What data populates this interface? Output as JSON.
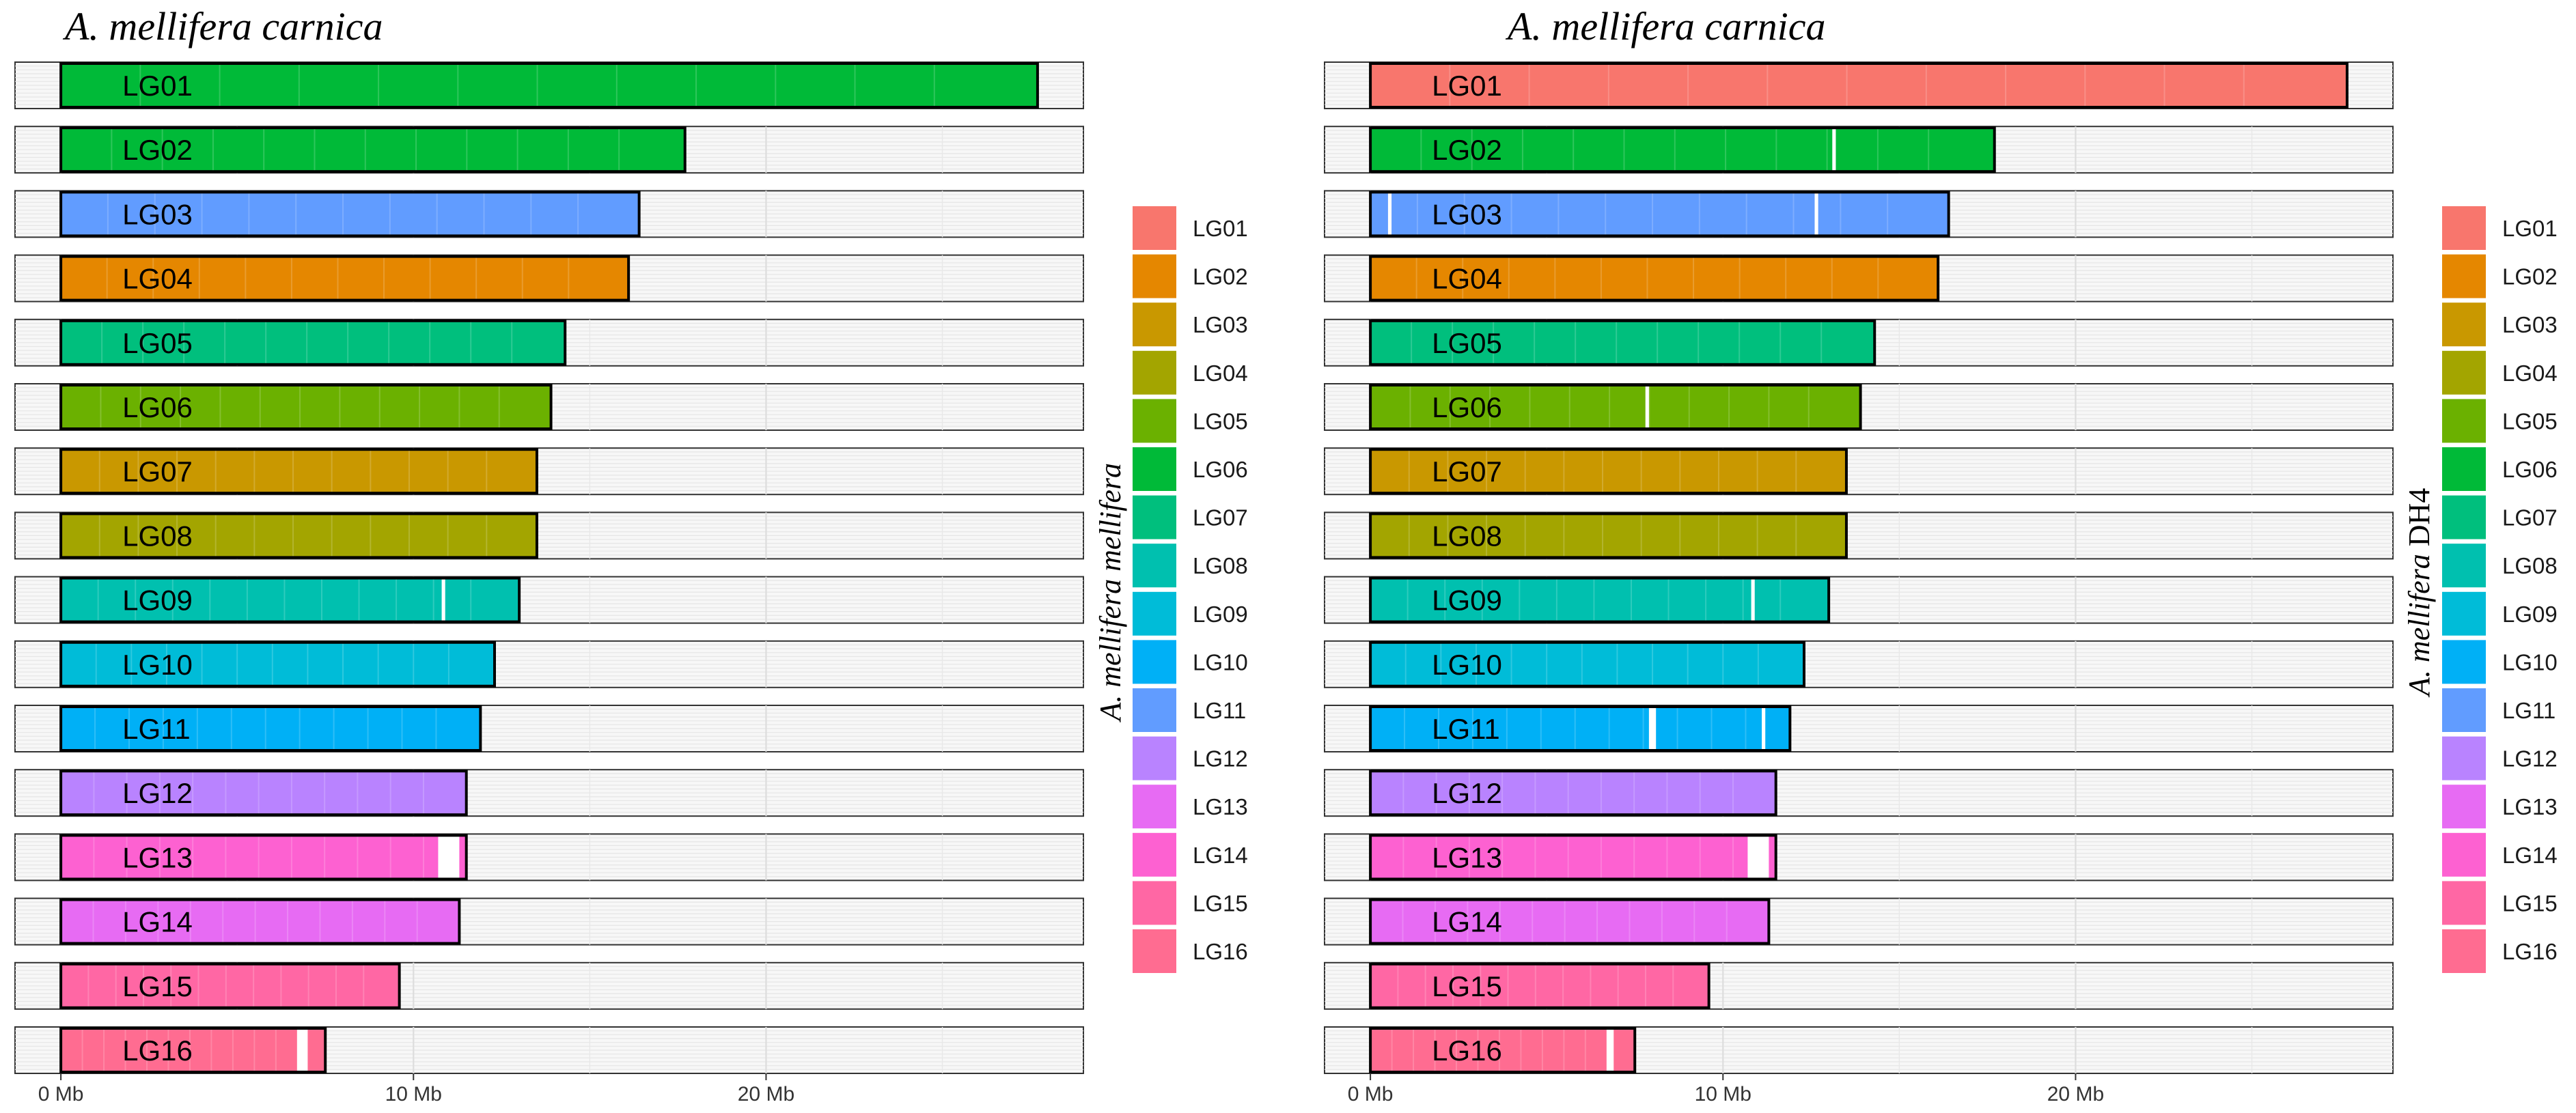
{
  "colors": {
    "LG01": "#F8766D",
    "LG02": "#E58700",
    "LG03": "#C99800",
    "LG04": "#A3A500",
    "LG05": "#6BB100",
    "LG06": "#00BA38",
    "LG07": "#00BF7D",
    "LG08": "#00C0AF",
    "LG09": "#00BCD8",
    "LG10": "#00B0F6",
    "LG11": "#619CFF",
    "LG12": "#B983FF",
    "LG13": "#E76BF3",
    "LG14": "#FD61D1",
    "LG15": "#FF67A4",
    "LG16": "#FF6C91"
  },
  "chart_data": [
    {
      "type": "bar",
      "title": "A. mellifera carnica",
      "xlabel": "",
      "ylabel_italic": "A. mellifera mellifera",
      "ylabel_plain": "",
      "xlim": [
        -1.3,
        29
      ],
      "xticks": [
        0,
        10,
        20
      ],
      "xtick_labels": [
        "0 Mb",
        "10 Mb",
        "20 Mb"
      ],
      "categories": [
        "LG01",
        "LG02",
        "LG03",
        "LG04",
        "LG05",
        "LG06",
        "LG07",
        "LG08",
        "LG09",
        "LG10",
        "LG11",
        "LG12",
        "LG13",
        "LG14",
        "LG15",
        "LG16"
      ],
      "values": [
        27.7,
        17.7,
        16.4,
        16.1,
        14.3,
        13.9,
        13.5,
        13.5,
        13.0,
        12.3,
        11.9,
        11.5,
        11.5,
        11.3,
        9.6,
        7.5
      ],
      "mapped_to": [
        "LG06",
        "LG06",
        "LG11",
        "LG02",
        "LG07",
        "LG05",
        "LG03",
        "LG04",
        "LG08",
        "LG09",
        "LG10",
        "LG12",
        "LG14",
        "LG13",
        "LG15",
        "LG16"
      ],
      "gaps": [
        [],
        [],
        [],
        [],
        [],
        [],
        [],
        [],
        [
          {
            "start": 10.8,
            "end": 10.9
          }
        ],
        [],
        [],
        [],
        [
          {
            "start": 10.7,
            "end": 11.3
          }
        ],
        [],
        [],
        [
          {
            "start": 6.7,
            "end": 7.0
          }
        ]
      ],
      "legend_title": "A. mellifera mellifera",
      "legend": [
        "LG01",
        "LG02",
        "LG03",
        "LG04",
        "LG05",
        "LG06",
        "LG07",
        "LG08",
        "LG09",
        "LG10",
        "LG11",
        "LG12",
        "LG13",
        "LG14",
        "LG15",
        "LG16"
      ],
      "legend_position": "right"
    },
    {
      "type": "bar",
      "title": "A. mellifera carnica",
      "xlabel": "",
      "ylabel_italic": "A. mellifera",
      "ylabel_plain": "DH4",
      "xlim": [
        -1.3,
        29
      ],
      "xticks": [
        0,
        10,
        20
      ],
      "xtick_labels": [
        "0 Mb",
        "10 Mb",
        "20 Mb"
      ],
      "categories": [
        "LG01",
        "LG02",
        "LG03",
        "LG04",
        "LG05",
        "LG06",
        "LG07",
        "LG08",
        "LG09",
        "LG10",
        "LG11",
        "LG12",
        "LG13",
        "LG14",
        "LG15",
        "LG16"
      ],
      "values": [
        27.7,
        17.7,
        16.4,
        16.1,
        14.3,
        13.9,
        13.5,
        13.5,
        13.0,
        12.3,
        11.9,
        11.5,
        11.5,
        11.3,
        9.6,
        7.5
      ],
      "mapped_to": [
        "LG01",
        "LG06",
        "LG11",
        "LG02",
        "LG07",
        "LG05",
        "LG03",
        "LG04",
        "LG08",
        "LG09",
        "LG10",
        "LG12",
        "LG14",
        "LG13",
        "LG15",
        "LG16"
      ],
      "gaps": [
        [],
        [
          {
            "start": 13.1,
            "end": 13.2
          }
        ],
        [
          {
            "start": 0.5,
            "end": 0.6
          },
          {
            "start": 12.6,
            "end": 12.7
          }
        ],
        [],
        [],
        [
          {
            "start": 7.8,
            "end": 7.9
          }
        ],
        [],
        [],
        [
          {
            "start": 10.8,
            "end": 10.9
          }
        ],
        [],
        [
          {
            "start": 7.9,
            "end": 8.1
          },
          {
            "start": 11.1,
            "end": 11.2
          }
        ],
        [],
        [
          {
            "start": 10.7,
            "end": 11.3
          }
        ],
        [],
        [],
        [
          {
            "start": 6.7,
            "end": 6.9
          }
        ]
      ],
      "legend_title": "A. mellifera DH4",
      "legend": [
        "LG01",
        "LG02",
        "LG03",
        "LG04",
        "LG05",
        "LG06",
        "LG07",
        "LG08",
        "LG09",
        "LG10",
        "LG11",
        "LG12",
        "LG13",
        "LG14",
        "LG15",
        "LG16"
      ],
      "legend_position": "right"
    }
  ]
}
